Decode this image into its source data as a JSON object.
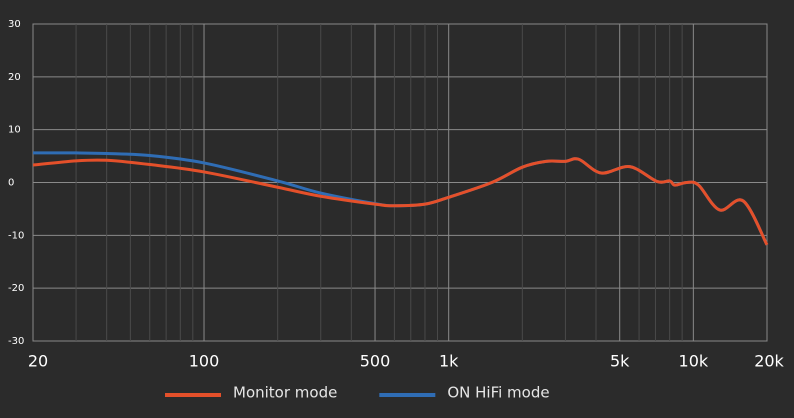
{
  "chart_data": {
    "type": "line",
    "x": [
      20,
      30,
      40,
      60,
      100,
      200,
      300,
      500,
      600,
      800,
      1000,
      1500,
      2000,
      2500,
      3000,
      3400,
      4200,
      5500,
      7100,
      8000,
      8400,
      9400,
      10500,
      12800,
      16000,
      20000
    ],
    "series": [
      {
        "name": "ON HiFi mode",
        "color": "#2f6db5",
        "values": [
          5.6,
          5.6,
          5.5,
          5.1,
          3.7,
          0.3,
          -2.0,
          -4.0,
          -4.4,
          -4.1,
          -2.8,
          0,
          2.9,
          4.0,
          4.0,
          4.4,
          1.8,
          3.0,
          0.2,
          0.3,
          -0.5,
          0,
          -0.5,
          -5.2,
          -3.5,
          -11.8
        ]
      },
      {
        "name": "Monitor mode",
        "color": "#e4502a",
        "values": [
          3.3,
          4.1,
          4.2,
          3.4,
          2.0,
          -0.9,
          -2.6,
          -4.1,
          -4.4,
          -4.1,
          -2.8,
          0,
          2.9,
          4.0,
          4.0,
          4.4,
          1.8,
          3.0,
          0.2,
          0.3,
          -0.5,
          0,
          -0.5,
          -5.2,
          -3.5,
          -11.8
        ]
      }
    ],
    "legend_order": [
      1,
      0
    ],
    "x_log": true,
    "xlim": [
      20,
      20000
    ],
    "xticks": [
      20,
      100,
      500,
      {
        "value": 1000,
        "label": "1k"
      },
      {
        "value": 5000,
        "label": "5k"
      },
      {
        "value": 10000,
        "label": "10k"
      },
      {
        "value": 20000,
        "label": "20k"
      }
    ],
    "x_minor_ticks": [
      30,
      40,
      50,
      60,
      70,
      80,
      90,
      200,
      300,
      400,
      600,
      700,
      800,
      900,
      2000,
      3000,
      4000,
      6000,
      7000,
      8000,
      9000
    ],
    "ylim": [
      -30,
      30
    ],
    "yticks": [
      -30,
      -20,
      -10,
      0,
      10,
      20,
      30
    ],
    "grid": true
  }
}
